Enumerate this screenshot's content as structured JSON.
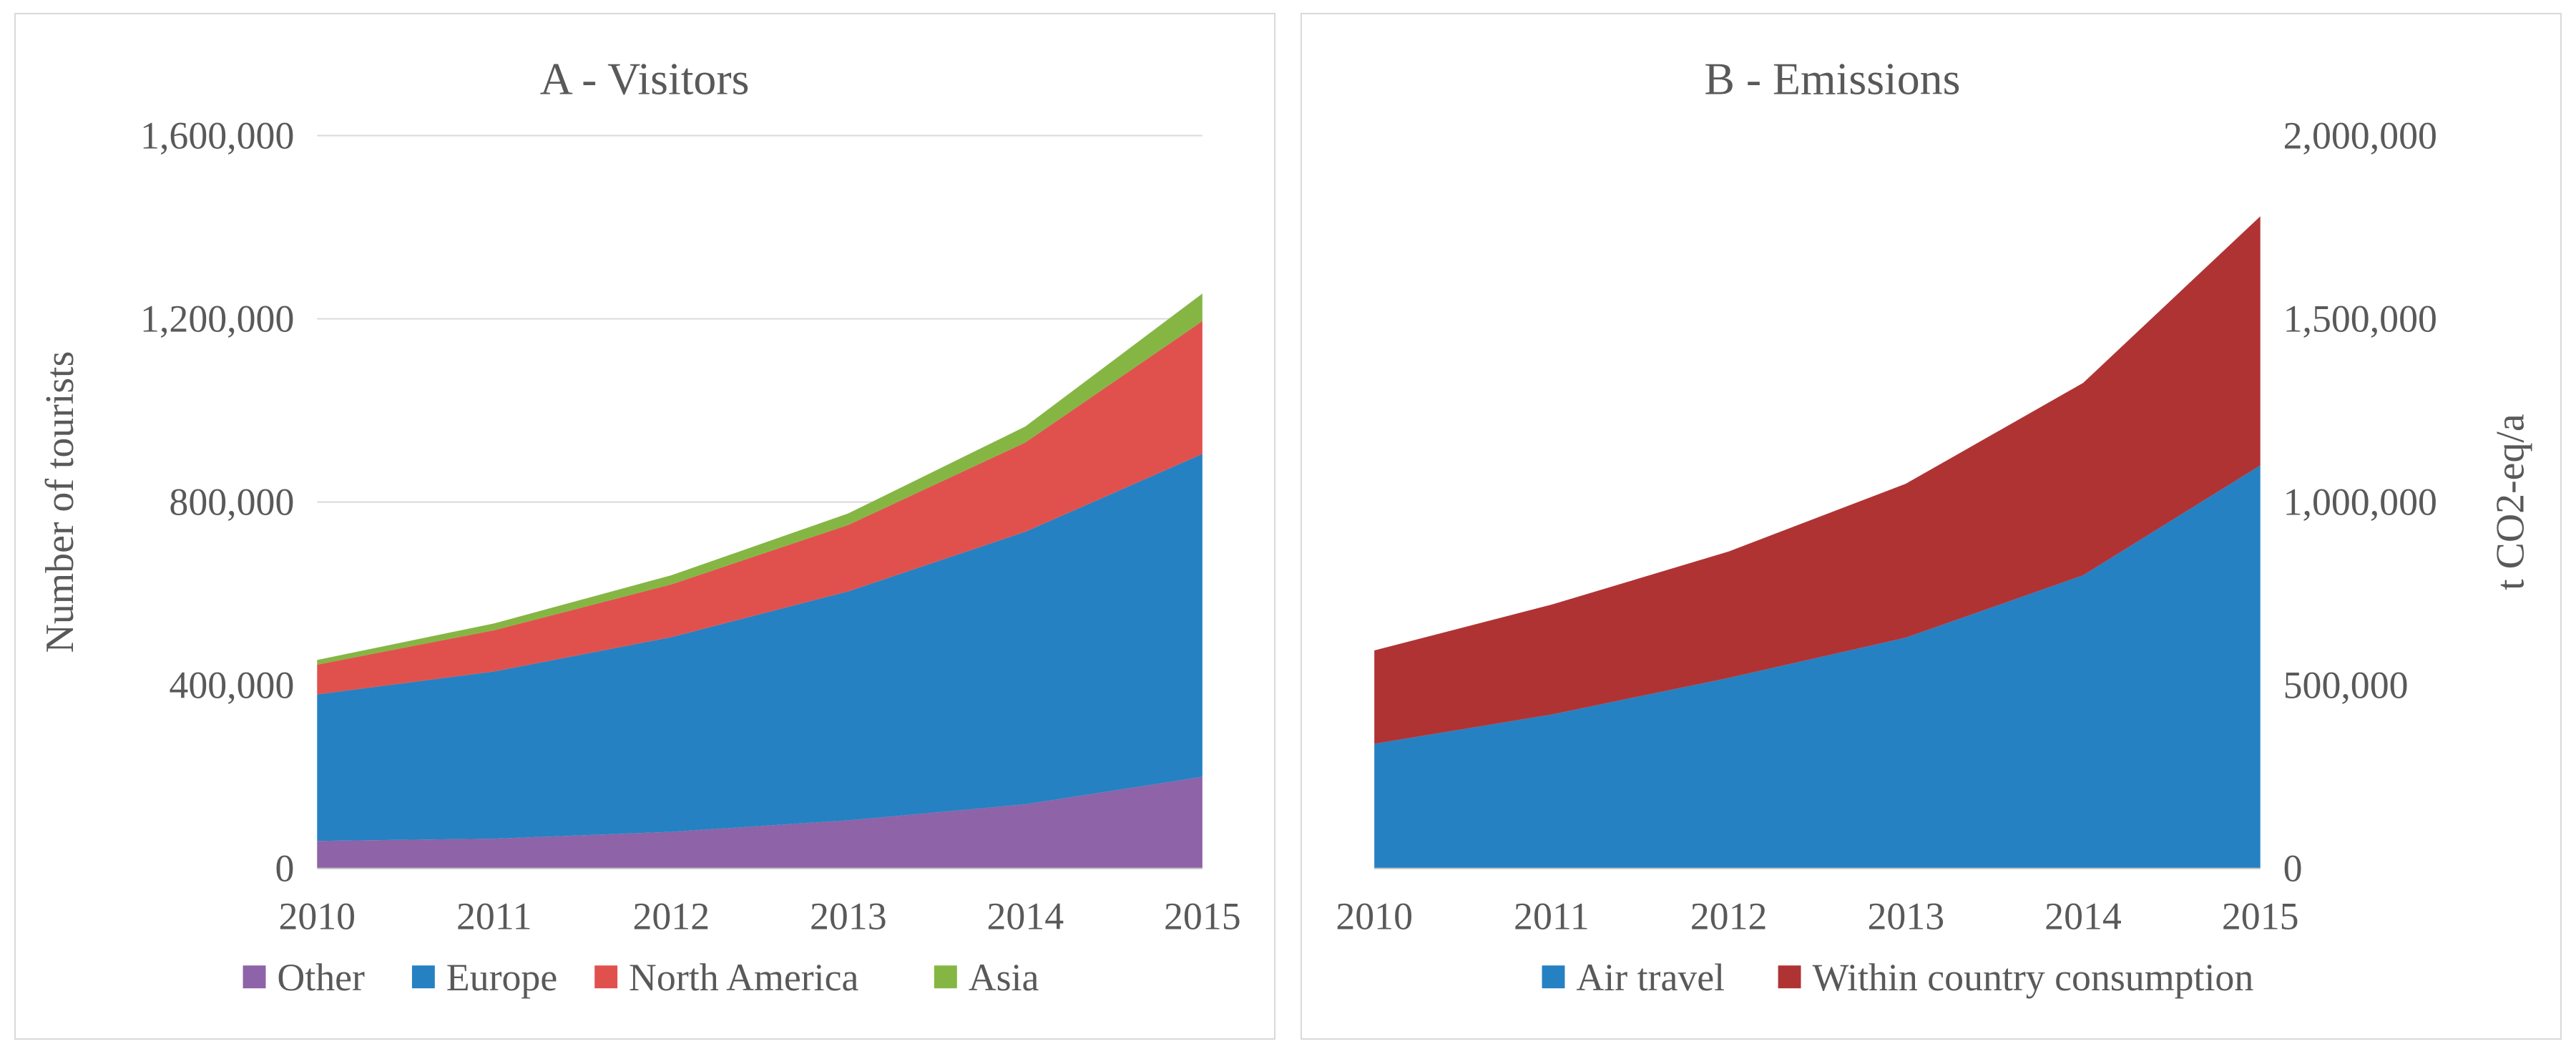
{
  "chart_data": [
    {
      "type": "area",
      "stacked": true,
      "title": "A - Visitors",
      "ylabel": "Number of tourists",
      "xlabel": "",
      "x": [
        "2010",
        "2011",
        "2012",
        "2013",
        "2014",
        "2015"
      ],
      "ylim": [
        0,
        1600000
      ],
      "yticks": [
        0,
        400000,
        800000,
        1200000,
        1600000
      ],
      "ytick_labels": [
        "0",
        "400,000",
        "800,000",
        "1,200,000",
        "1,600,000"
      ],
      "grid": true,
      "legend_position": "bottom",
      "series": [
        {
          "name": "Other",
          "color": "#8e63a7",
          "values": [
            60000,
            65000,
            80000,
            105000,
            140000,
            200000
          ]
        },
        {
          "name": "Europe",
          "color": "#2581c2",
          "values": [
            320000,
            365000,
            425000,
            500000,
            595000,
            705000
          ]
        },
        {
          "name": "North America",
          "color": "#e0514e",
          "values": [
            65000,
            90000,
            115000,
            145000,
            195000,
            290000
          ]
        },
        {
          "name": "Asia",
          "color": "#85b644",
          "values": [
            10000,
            15000,
            20000,
            25000,
            35000,
            60000
          ]
        }
      ]
    },
    {
      "type": "area",
      "stacked": true,
      "title": "B - Emissions",
      "ylabel": "t CO2-eq/a",
      "xlabel": "",
      "x": [
        "2010",
        "2011",
        "2012",
        "2013",
        "2014",
        "2015"
      ],
      "ylim": [
        0,
        2000000
      ],
      "yticks": [
        0,
        500000,
        1000000,
        1500000,
        2000000
      ],
      "ytick_labels": [
        "0",
        "500,000",
        "1,000,000",
        "1,500,000",
        "2,000,000"
      ],
      "y_axis_side": "right",
      "grid": false,
      "legend_position": "bottom",
      "series": [
        {
          "name": "Air travel",
          "color": "#2581c2",
          "values": [
            340000,
            420000,
            520000,
            630000,
            800000,
            1100000
          ]
        },
        {
          "name": "Within country consumption",
          "color": "#b03334",
          "values": [
            255000,
            300000,
            345000,
            420000,
            525000,
            680000
          ]
        }
      ]
    }
  ]
}
